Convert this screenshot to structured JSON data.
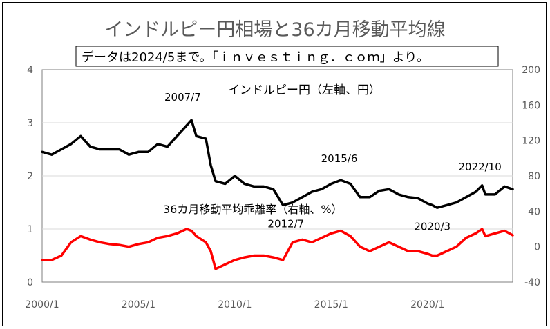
{
  "chart_data": {
    "type": "line",
    "title": "インドルピー円相場と36カ月移動平均線",
    "subtitle": "データは2024/5まで。「ｉｎｖｅｓｔｉｎｇ．ｃｏｍ」より。",
    "x_tick_labels": [
      "2000/1",
      "2005/1",
      "2010/1",
      "2015/1",
      "2020/1"
    ],
    "x_ticks": [
      2000.0,
      2005.0,
      2010.0,
      2015.0,
      2020.0
    ],
    "x_range": [
      2000.0,
      2024.42
    ],
    "y_left": {
      "ticks": [
        0,
        1,
        2,
        3,
        4
      ],
      "range": [
        0,
        4
      ]
    },
    "y_right": {
      "ticks": [
        -40,
        0,
        40,
        80,
        120,
        160,
        200
      ],
      "range": [
        -40,
        200
      ]
    },
    "grid": "horizontal",
    "colors": {
      "series_1": "#000000",
      "series_2": "#ff0000"
    },
    "series": [
      {
        "name": "インドルピー円（左軸、円）",
        "axis": "left",
        "x": [
          2000.0,
          2000.5,
          2001.0,
          2001.5,
          2002.0,
          2002.5,
          2003.0,
          2003.5,
          2004.0,
          2004.5,
          2005.0,
          2005.5,
          2006.0,
          2006.5,
          2007.0,
          2007.5,
          2007.75,
          2008.0,
          2008.5,
          2008.75,
          2009.0,
          2009.5,
          2010.0,
          2010.5,
          2011.0,
          2011.5,
          2012.0,
          2012.5,
          2013.0,
          2013.5,
          2014.0,
          2014.5,
          2015.0,
          2015.5,
          2016.0,
          2016.5,
          2017.0,
          2017.5,
          2018.0,
          2018.5,
          2019.0,
          2019.5,
          2020.0,
          2020.25,
          2020.5,
          2021.0,
          2021.5,
          2022.0,
          2022.5,
          2022.83,
          2023.0,
          2023.5,
          2024.0,
          2024.42
        ],
        "values": [
          2.45,
          2.4,
          2.5,
          2.6,
          2.75,
          2.55,
          2.5,
          2.5,
          2.5,
          2.4,
          2.45,
          2.45,
          2.6,
          2.55,
          2.75,
          2.95,
          3.05,
          2.75,
          2.7,
          2.2,
          1.9,
          1.85,
          2.0,
          1.85,
          1.8,
          1.8,
          1.75,
          1.45,
          1.5,
          1.6,
          1.7,
          1.75,
          1.85,
          1.92,
          1.85,
          1.6,
          1.6,
          1.72,
          1.75,
          1.65,
          1.6,
          1.58,
          1.48,
          1.45,
          1.4,
          1.45,
          1.5,
          1.6,
          1.7,
          1.82,
          1.65,
          1.65,
          1.8,
          1.75
        ]
      },
      {
        "name": "36カ月移動平均乖離率（右軸、%）",
        "axis": "right",
        "x": [
          2000.0,
          2000.5,
          2001.0,
          2001.5,
          2002.0,
          2002.5,
          2003.0,
          2003.5,
          2004.0,
          2004.5,
          2005.0,
          2005.5,
          2006.0,
          2006.5,
          2007.0,
          2007.5,
          2007.75,
          2008.0,
          2008.5,
          2008.75,
          2009.0,
          2009.5,
          2010.0,
          2010.5,
          2011.0,
          2011.5,
          2012.0,
          2012.5,
          2013.0,
          2013.5,
          2014.0,
          2014.5,
          2015.0,
          2015.5,
          2016.0,
          2016.5,
          2017.0,
          2017.5,
          2018.0,
          2018.5,
          2019.0,
          2019.5,
          2020.0,
          2020.25,
          2020.5,
          2021.0,
          2021.5,
          2022.0,
          2022.5,
          2022.83,
          2023.0,
          2023.5,
          2024.0,
          2024.42
        ],
        "values": [
          -15,
          -15,
          -10,
          5,
          12,
          8,
          5,
          3,
          2,
          0,
          3,
          5,
          10,
          12,
          15,
          20,
          18,
          12,
          5,
          -5,
          -25,
          -20,
          -15,
          -12,
          -10,
          -10,
          -12,
          -15,
          5,
          8,
          5,
          10,
          15,
          18,
          12,
          0,
          -5,
          0,
          5,
          0,
          -5,
          -5,
          -8,
          -10,
          -10,
          -5,
          0,
          10,
          15,
          20,
          12,
          15,
          18,
          13
        ]
      }
    ],
    "annotations": [
      {
        "text": "2007/7",
        "x": 2007.58,
        "y_left": 3.05
      },
      {
        "text": "2012/7",
        "x": 2012.58,
        "y_left": 1.45
      },
      {
        "text": "2015/6",
        "x": 2015.42,
        "y_left": 1.92
      },
      {
        "text": "2020/3",
        "x": 2020.25,
        "y_left": 1.42
      },
      {
        "text": "2022/10",
        "x": 2022.83,
        "y_left": 1.82
      }
    ]
  }
}
